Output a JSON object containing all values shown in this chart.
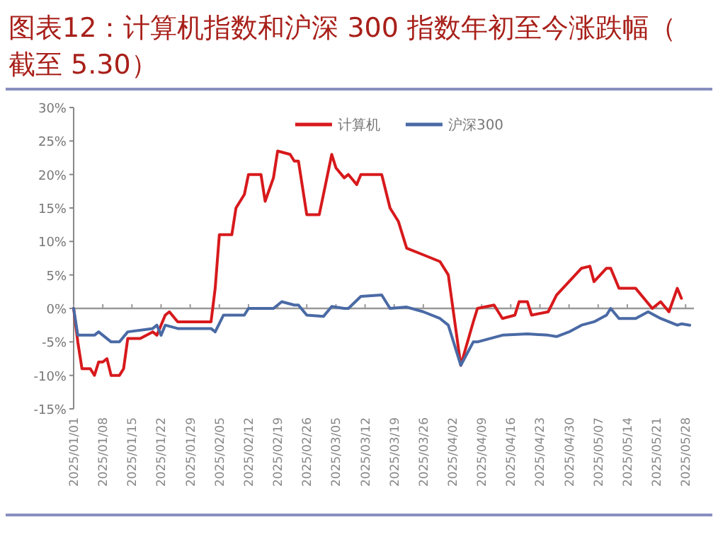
{
  "chart_data": {
    "type": "line",
    "title": "图表12：计算机指数和沪深 300 指数年初至今涨跌幅（截至 5.30）",
    "xlim": [
      "2025-01-01",
      "2025-05-30"
    ],
    "xticks": [
      {
        "value": "2025-01-01",
        "label": "2025/01/01"
      },
      {
        "value": "2025-01-08",
        "label": "2025/01/08"
      },
      {
        "value": "2025-01-15",
        "label": "2025/01/15"
      },
      {
        "value": "2025-01-22",
        "label": "2025/01/22"
      },
      {
        "value": "2025-01-29",
        "label": "2025/01/29"
      },
      {
        "value": "2025-02-05",
        "label": "2025/02/05"
      },
      {
        "value": "2025-02-12",
        "label": "2025/02/12"
      },
      {
        "value": "2025-02-19",
        "label": "2025/02/19"
      },
      {
        "value": "2025-02-26",
        "label": "2025/02/26"
      },
      {
        "value": "2025-03-05",
        "label": "2025/03/05"
      },
      {
        "value": "2025-03-12",
        "label": "2025/03/12"
      },
      {
        "value": "2025-03-19",
        "label": "2025/03/19"
      },
      {
        "value": "2025-03-26",
        "label": "2025/03/26"
      },
      {
        "value": "2025-04-02",
        "label": "2025/04/02"
      },
      {
        "value": "2025-04-09",
        "label": "2025/04/09"
      },
      {
        "value": "2025-04-16",
        "label": "2025/04/16"
      },
      {
        "value": "2025-04-23",
        "label": "2025/04/23"
      },
      {
        "value": "2025-04-30",
        "label": "2025/04/30"
      },
      {
        "value": "2025-05-07",
        "label": "2025/05/07"
      },
      {
        "value": "2025-05-14",
        "label": "2025/05/14"
      },
      {
        "value": "2025-05-21",
        "label": "2025/05/21"
      },
      {
        "value": "2025-05-28",
        "label": "2025/05/28"
      }
    ],
    "ylim": [
      -15,
      30
    ],
    "yticks": [
      {
        "value": -15,
        "label": "-15%"
      },
      {
        "value": -10,
        "label": "-10%"
      },
      {
        "value": -5,
        "label": "-5%"
      },
      {
        "value": 0,
        "label": "0%"
      },
      {
        "value": 5,
        "label": "5%"
      },
      {
        "value": 10,
        "label": "10%"
      },
      {
        "value": 15,
        "label": "15%"
      },
      {
        "value": 20,
        "label": "20%"
      },
      {
        "value": 25,
        "label": "25%"
      },
      {
        "value": 30,
        "label": "30%"
      }
    ],
    "legend": "top",
    "marker": "none",
    "line_style": "solid",
    "series": [
      {
        "name": "计算机",
        "color": "#d7191c",
        "x": [
          "2025-01-01",
          "2025-01-02",
          "2025-01-03",
          "2025-01-05",
          "2025-01-06",
          "2025-01-07",
          "2025-01-08",
          "2025-01-09",
          "2025-01-10",
          "2025-01-12",
          "2025-01-13",
          "2025-01-14",
          "2025-01-17",
          "2025-01-20",
          "2025-01-21",
          "2025-01-23",
          "2025-01-24",
          "2025-01-26",
          "2025-02-03",
          "2025-02-04",
          "2025-02-05",
          "2025-02-08",
          "2025-02-09",
          "2025-02-11",
          "2025-02-12",
          "2025-02-15",
          "2025-02-16",
          "2025-02-18",
          "2025-02-19",
          "2025-02-22",
          "2025-02-23",
          "2025-02-24",
          "2025-02-26",
          "2025-03-01",
          "2025-03-02",
          "2025-03-04",
          "2025-03-05",
          "2025-03-07",
          "2025-03-08",
          "2025-03-10",
          "2025-03-11",
          "2025-03-16",
          "2025-03-18",
          "2025-03-20",
          "2025-03-22",
          "2025-03-26",
          "2025-03-30",
          "2025-04-01",
          "2025-04-04",
          "2025-04-07",
          "2025-04-08",
          "2025-04-12",
          "2025-04-14",
          "2025-04-17",
          "2025-04-18",
          "2025-04-20",
          "2025-04-21",
          "2025-04-25",
          "2025-04-27",
          "2025-04-30",
          "2025-05-03",
          "2025-05-05",
          "2025-05-06",
          "2025-05-09",
          "2025-05-10",
          "2025-05-12",
          "2025-05-16",
          "2025-05-20",
          "2025-05-22",
          "2025-05-24",
          "2025-05-26",
          "2025-05-27"
        ],
        "values": [
          0,
          -5,
          -9,
          -9,
          -10,
          -8,
          -8,
          -7.5,
          -10,
          -10,
          -9,
          -4.5,
          -4.5,
          -3.5,
          -4,
          -1,
          -0.5,
          -2,
          -2,
          3,
          11,
          11,
          15,
          17,
          20,
          20,
          16,
          19.5,
          23.5,
          23,
          22,
          22,
          14,
          14,
          17,
          23,
          21,
          19.5,
          20,
          18.5,
          20,
          20,
          15,
          13,
          9,
          8,
          7,
          5,
          -8.5,
          -2,
          0,
          0.5,
          -1.5,
          -1,
          1,
          1,
          -1,
          -0.5,
          2,
          4,
          6,
          6.3,
          4,
          6,
          6,
          3,
          3,
          0,
          1,
          -0.5,
          3,
          1.5
        ]
      },
      {
        "name": "沪深300",
        "color": "#4a6aa5",
        "x": [
          "2025-01-01",
          "2025-01-02",
          "2025-01-06",
          "2025-01-07",
          "2025-01-10",
          "2025-01-12",
          "2025-01-14",
          "2025-01-20",
          "2025-01-21",
          "2025-01-22",
          "2025-01-23",
          "2025-01-26",
          "2025-02-03",
          "2025-02-04",
          "2025-02-06",
          "2025-02-09",
          "2025-02-11",
          "2025-02-12",
          "2025-02-16",
          "2025-02-18",
          "2025-02-20",
          "2025-02-23",
          "2025-02-24",
          "2025-02-26",
          "2025-03-02",
          "2025-03-04",
          "2025-03-07",
          "2025-03-08",
          "2025-03-11",
          "2025-03-16",
          "2025-03-18",
          "2025-03-22",
          "2025-03-26",
          "2025-03-30",
          "2025-04-01",
          "2025-04-04",
          "2025-04-07",
          "2025-04-08",
          "2025-04-14",
          "2025-04-20",
          "2025-04-25",
          "2025-04-27",
          "2025-04-30",
          "2025-05-03",
          "2025-05-06",
          "2025-05-09",
          "2025-05-10",
          "2025-05-12",
          "2025-05-16",
          "2025-05-19",
          "2025-05-22",
          "2025-05-26",
          "2025-05-27",
          "2025-05-29"
        ],
        "values": [
          0,
          -4,
          -4,
          -3.5,
          -5,
          -5,
          -3.5,
          -3,
          -2.5,
          -4,
          -2.5,
          -3,
          -3,
          -3.5,
          -1,
          -1,
          -1,
          0,
          0,
          0,
          1,
          0.5,
          0.5,
          -1,
          -1.2,
          0.3,
          0,
          0,
          1.8,
          2,
          0,
          0.2,
          -0.5,
          -1.5,
          -2.5,
          -8.5,
          -5,
          -5,
          -4,
          -3.8,
          -4,
          -4.2,
          -3.5,
          -2.5,
          -2,
          -1,
          0,
          -1.5,
          -1.5,
          -0.5,
          -1.5,
          -2.5,
          -2.3,
          -2.5
        ]
      }
    ]
  }
}
